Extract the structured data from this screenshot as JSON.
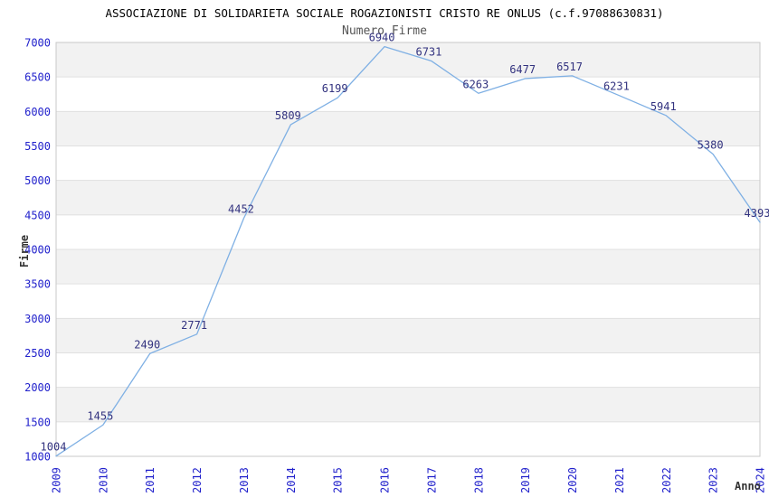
{
  "chart_data": {
    "type": "line",
    "title": "ASSOCIAZIONE DI SOLIDARIETA SOCIALE ROGAZIONISTI CRISTO RE ONLUS (c.f.97088630831)",
    "subtitle": "Numero Firme",
    "xlabel": "Anno",
    "ylabel": "Firme",
    "categories": [
      "2009",
      "2010",
      "2011",
      "2012",
      "2013",
      "2014",
      "2015",
      "2016",
      "2017",
      "2018",
      "2019",
      "2020",
      "2021",
      "2022",
      "2023",
      "2024"
    ],
    "values": [
      1004,
      1455,
      2490,
      2771,
      4452,
      5809,
      6199,
      6940,
      6731,
      6263,
      6477,
      6517,
      6231,
      5941,
      5380,
      4393
    ],
    "ylim": [
      1000,
      7000
    ],
    "ytick_step": 500,
    "grid": true,
    "legend_position": "none",
    "band_pattern": "alternating-500",
    "colors": {
      "line": "#7fb0e4",
      "point_label": "#32327f",
      "tick_label": "#2222cc",
      "band_gray": "#f2f2f2",
      "band_white": "#ffffff",
      "gridline": "#e0e0e0",
      "plot_border": "#c8c8c8",
      "title_text": "#000000",
      "subtitle_text": "#555555",
      "axis_title_text": "#333333",
      "background": "#ffffff"
    }
  }
}
